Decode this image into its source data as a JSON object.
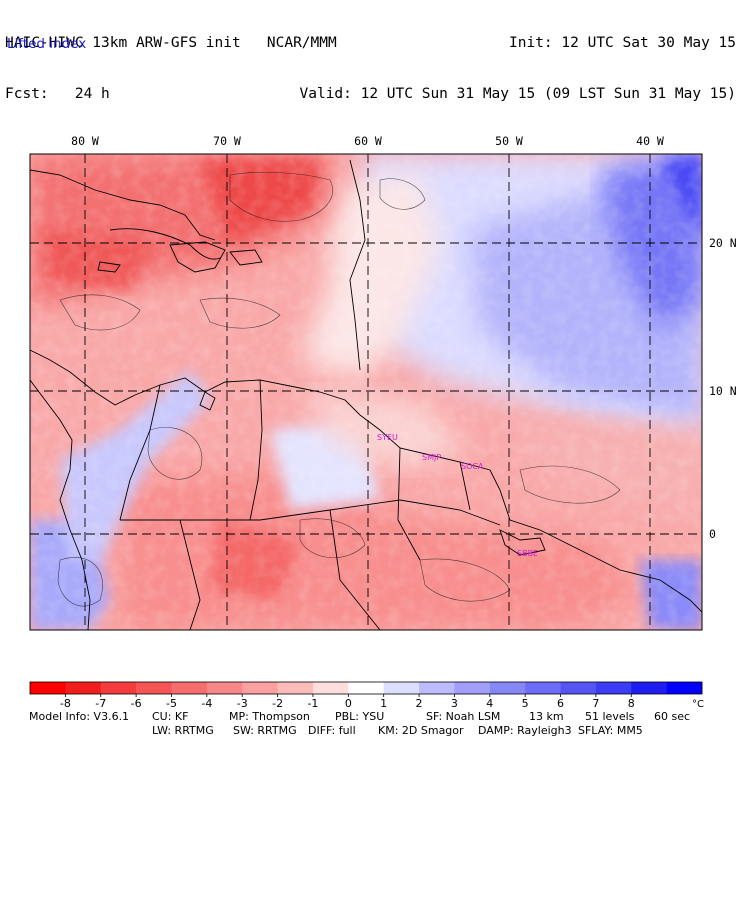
{
  "header": {
    "line1_left": "HAIC-HIWC 13km ARW-GFS init   NCAR/MMM",
    "line2_left": "Fcst:   24 h",
    "line1_right": "Init: 12 UTC Sat 30 May 15",
    "line2_right": "Valid: 12 UTC Sun 31 May 15 (09 LST Sun 31 May 15)"
  },
  "field_label": "Lifted index",
  "map": {
    "lon_labels": [
      "80 W",
      "70 W",
      "60 W",
      "50 W",
      "40 W"
    ],
    "lat_labels": [
      "20 N",
      "10 N",
      "0"
    ],
    "stations": [
      "SYEU",
      "SMJP",
      "SOCA",
      "SBBE"
    ],
    "colors": {
      "station": "#d020d0",
      "grid": "#000000",
      "coast": "#000000"
    }
  },
  "legend": {
    "ticks": [
      "-8",
      "-7",
      "-6",
      "-5",
      "-4",
      "-3",
      "-2",
      "-1",
      "0",
      "1",
      "2",
      "3",
      "4",
      "5",
      "6",
      "7",
      "8"
    ],
    "unit": "°C",
    "colors": [
      "#ff0000",
      "#f21d1d",
      "#f43c3c",
      "#f55555",
      "#f76d6d",
      "#f98787",
      "#fba0a0",
      "#fdbcbc",
      "#ffdede",
      "#ffffff",
      "#dedeff",
      "#bcbcfd",
      "#a0a0fb",
      "#8787f9",
      "#6d6df7",
      "#5555f5",
      "#3c3cf4",
      "#1d1df2",
      "#0000ff"
    ]
  },
  "footer": {
    "line1": {
      "model": "Model Info: V3.6.1",
      "cu": "CU: KF",
      "mp": "MP: Thompson",
      "pbl": "PBL: YSU",
      "sf": "SF: Noah LSM",
      "res": "13 km",
      "levels": "51 levels",
      "dt": "60 sec"
    },
    "line2": {
      "lw": "LW: RRTMG",
      "sw": "SW: RRTMG",
      "diff": "DIFF: full",
      "km": "KM: 2D Smagor",
      "damp": "DAMP: Rayleigh3",
      "sflay": "SFLAY: MM5"
    }
  }
}
